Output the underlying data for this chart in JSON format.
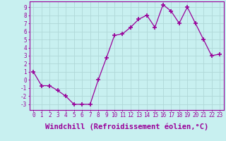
{
  "x": [
    0,
    1,
    2,
    3,
    4,
    5,
    6,
    7,
    8,
    9,
    10,
    11,
    12,
    13,
    14,
    15,
    16,
    17,
    18,
    19,
    20,
    21,
    22,
    23
  ],
  "y": [
    1,
    -0.7,
    -0.7,
    -1.3,
    -2,
    -3,
    -3,
    -3,
    0,
    2.7,
    5.5,
    5.7,
    6.5,
    7.5,
    8,
    6.5,
    9.3,
    8.5,
    7,
    9,
    7,
    5,
    3,
    3.2
  ],
  "line_color": "#990099",
  "marker": "+",
  "background_color": "#c8f0f0",
  "grid_color": "#b0d8d8",
  "xlabel": "Windchill (Refroidissement éolien,°C)",
  "xlim": [
    -0.5,
    23.5
  ],
  "ylim": [
    -3.7,
    9.7
  ],
  "yticks": [
    -3,
    -2,
    -1,
    0,
    1,
    2,
    3,
    4,
    5,
    6,
    7,
    8,
    9
  ],
  "xticks": [
    0,
    1,
    2,
    3,
    4,
    5,
    6,
    7,
    8,
    9,
    10,
    11,
    12,
    13,
    14,
    15,
    16,
    17,
    18,
    19,
    20,
    21,
    22,
    23
  ],
  "tick_color": "#990099",
  "tick_fontsize": 5.5,
  "xlabel_fontsize": 7.5,
  "spine_color": "#990099"
}
